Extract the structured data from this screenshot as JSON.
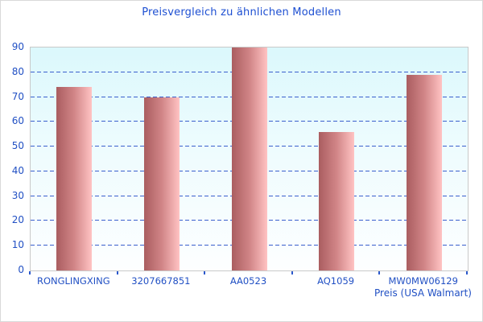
{
  "window": {
    "background": "#ffffff",
    "frame_border": "#d9d9d9"
  },
  "chart_data": {
    "type": "bar",
    "title": "Preisvergleich zu ähnlichen Modellen",
    "categories": [
      "RONGLINGXING",
      "3207667851",
      "AA0523",
      "AQ1059",
      "MW0MW06129"
    ],
    "values": [
      74,
      70,
      90,
      56,
      79
    ],
    "xlabel": "Preis (USA Walmart)",
    "ylabel": "",
    "ylim": [
      0,
      90
    ],
    "ytick_step": 10,
    "yticks": [
      0,
      10,
      20,
      30,
      40,
      50,
      60,
      70,
      80,
      90
    ],
    "grid": "horizontal-dashed",
    "legend_position": "none",
    "colors": {
      "title_text": "#1d4fd2",
      "axis_text": "#2150c4",
      "gridline": "#3a5fcd",
      "tick_mark": "#2b59cc",
      "bar_gradient_left": "#aa5d60",
      "bar_gradient_mid": "#d18587",
      "bar_gradient_right": "#ffc3c3",
      "plot_bg_top": "#dbf8fc",
      "plot_bg_mid": "#eefcfe",
      "plot_bg_bottom": "#fdfeff",
      "plot_border": "#c9c9c9"
    }
  }
}
